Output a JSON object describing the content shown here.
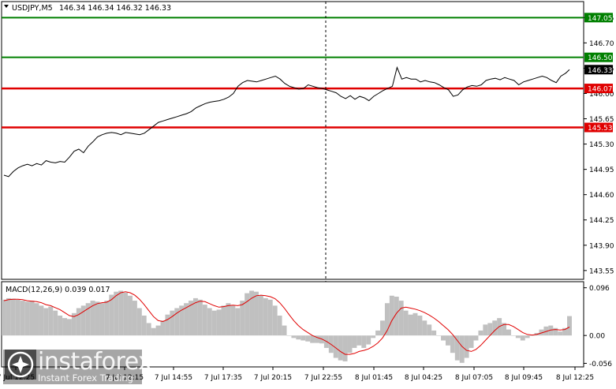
{
  "chart_data": [
    {
      "type": "line",
      "title": "USDJPY,M5",
      "ohlc_readout": "146.34 146.34 146.32 146.33",
      "ylim": [
        143.45,
        147.25
      ],
      "ytick_labels": [
        "147.05",
        "146.70",
        "146.35",
        "146.00",
        "145.65",
        "145.30",
        "144.95",
        "144.60",
        "144.25",
        "143.90",
        "143.55"
      ],
      "ytick_values": [
        147.05,
        146.7,
        146.35,
        146.0,
        145.65,
        145.3,
        144.95,
        144.6,
        144.25,
        143.9,
        143.55
      ],
      "horizontal_levels": [
        {
          "label": "147.05",
          "value": 147.05,
          "color": "#008000"
        },
        {
          "label": "146.50",
          "value": 146.5,
          "color": "#008000"
        },
        {
          "label": "146.07",
          "value": 146.07,
          "color": "#e00000"
        },
        {
          "label": "145.53",
          "value": 145.53,
          "color": "#e00000"
        }
      ],
      "current_price": {
        "label": "146.33",
        "value": 146.33
      },
      "x": [
        0,
        6,
        12,
        18,
        24,
        30,
        36,
        42,
        48,
        54,
        60,
        66,
        72,
        78,
        84,
        90,
        96,
        102,
        108,
        114,
        120,
        126,
        132,
        138,
        144,
        150,
        156,
        162,
        168,
        174,
        180,
        186,
        192,
        198,
        204,
        210,
        216,
        222,
        228,
        234,
        240,
        246,
        252,
        258,
        264,
        270,
        276,
        282,
        288,
        294,
        300,
        306,
        312,
        318,
        324,
        330,
        336,
        342,
        348,
        354,
        360,
        366,
        372,
        378,
        384,
        390,
        396,
        402,
        408,
        414,
        420,
        426,
        432,
        438,
        444,
        450,
        456,
        462,
        468,
        474,
        480,
        486,
        492,
        498,
        504,
        510,
        516,
        522,
        528,
        534,
        540,
        546,
        552,
        558,
        564,
        570,
        576,
        582,
        588,
        594,
        600,
        606,
        612,
        618,
        624,
        630,
        636,
        642,
        648,
        654,
        660,
        666,
        672,
        678,
        684,
        690,
        696,
        702,
        708,
        714,
        720,
        725
      ],
      "y": [
        144.87,
        144.85,
        144.92,
        144.97,
        145.0,
        145.02,
        145.0,
        145.03,
        145.01,
        145.07,
        145.05,
        145.04,
        145.06,
        145.05,
        145.12,
        145.2,
        145.23,
        145.18,
        145.27,
        145.33,
        145.4,
        145.43,
        145.45,
        145.46,
        145.45,
        145.43,
        145.46,
        145.45,
        145.44,
        145.43,
        145.45,
        145.5,
        145.55,
        145.6,
        145.62,
        145.64,
        145.66,
        145.68,
        145.7,
        145.72,
        145.75,
        145.8,
        145.83,
        145.86,
        145.88,
        145.89,
        145.9,
        145.92,
        145.95,
        146.0,
        146.1,
        146.15,
        146.18,
        146.17,
        146.16,
        146.18,
        146.2,
        146.22,
        146.24,
        146.2,
        146.14,
        146.1,
        146.08,
        146.06,
        146.07,
        146.12,
        146.1,
        146.08,
        146.07,
        146.05,
        146.03,
        146.01,
        145.96,
        145.93,
        145.97,
        145.92,
        145.96,
        145.94,
        145.9,
        145.96,
        146.0,
        146.04,
        146.07,
        146.1,
        146.36,
        146.2,
        146.22,
        146.2,
        146.2,
        146.16,
        146.18,
        146.16,
        146.15,
        146.12,
        146.08,
        146.05,
        145.96,
        145.98,
        146.05,
        146.09,
        146.11,
        146.1,
        146.12,
        146.18,
        146.2,
        146.21,
        146.19,
        146.22,
        146.2,
        146.18,
        146.12,
        146.16,
        146.18,
        146.2,
        146.22,
        146.24,
        146.22,
        146.18,
        146.15,
        146.24,
        146.28,
        146.33
      ]
    },
    {
      "type": "bar",
      "title": "MACD(12,26,9) 0.039 0.017",
      "ylim": [
        -0.06,
        0.105
      ],
      "ytick_labels": [
        "0.096",
        "0.00",
        "-0.056"
      ],
      "ytick_values": [
        0.096,
        0.0,
        -0.056
      ],
      "series": [
        {
          "name": "MACD",
          "values": [
            0.072,
            0.075,
            0.074,
            0.072,
            0.07,
            0.068,
            0.07,
            0.065,
            0.06,
            0.055,
            0.058,
            0.05,
            0.04,
            0.035,
            0.033,
            0.045,
            0.055,
            0.06,
            0.065,
            0.07,
            0.068,
            0.065,
            0.07,
            0.082,
            0.088,
            0.09,
            0.086,
            0.08,
            0.07,
            0.055,
            0.04,
            0.025,
            0.015,
            0.02,
            0.03,
            0.042,
            0.05,
            0.055,
            0.06,
            0.065,
            0.07,
            0.075,
            0.072,
            0.062,
            0.055,
            0.05,
            0.052,
            0.06,
            0.065,
            0.06,
            0.055,
            0.07,
            0.085,
            0.09,
            0.088,
            0.08,
            0.075,
            0.072,
            0.06,
            0.04,
            0.02,
            0.0,
            -0.005,
            -0.008,
            -0.01,
            -0.012,
            -0.015,
            -0.015,
            -0.016,
            -0.025,
            -0.035,
            -0.045,
            -0.05,
            -0.052,
            -0.035,
            -0.025,
            -0.02,
            -0.025,
            -0.018,
            -0.005,
            0.01,
            0.03,
            0.065,
            0.08,
            0.078,
            0.07,
            0.05,
            0.042,
            0.045,
            0.04,
            0.03,
            0.022,
            0.01,
            0.0,
            -0.01,
            -0.02,
            -0.035,
            -0.05,
            -0.055,
            -0.045,
            -0.025,
            -0.01,
            0.01,
            0.022,
            0.025,
            0.03,
            0.035,
            0.025,
            0.012,
            0.0,
            -0.005,
            -0.01,
            -0.005,
            0.0,
            0.005,
            0.012,
            0.018,
            0.02,
            0.015,
            0.008,
            0.015,
            0.039
          ]
        },
        {
          "name": "Signal",
          "values": [
            0.07,
            0.072,
            0.073,
            0.073,
            0.072,
            0.07,
            0.069,
            0.068,
            0.066,
            0.062,
            0.06,
            0.056,
            0.052,
            0.046,
            0.04,
            0.038,
            0.042,
            0.048,
            0.054,
            0.06,
            0.064,
            0.066,
            0.067,
            0.072,
            0.08,
            0.086,
            0.088,
            0.086,
            0.081,
            0.073,
            0.062,
            0.05,
            0.038,
            0.03,
            0.028,
            0.032,
            0.038,
            0.045,
            0.051,
            0.056,
            0.061,
            0.066,
            0.069,
            0.068,
            0.064,
            0.06,
            0.057,
            0.058,
            0.06,
            0.061,
            0.06,
            0.062,
            0.068,
            0.075,
            0.08,
            0.081,
            0.08,
            0.078,
            0.074,
            0.066,
            0.055,
            0.042,
            0.03,
            0.02,
            0.012,
            0.006,
            0.0,
            -0.004,
            -0.007,
            -0.012,
            -0.018,
            -0.025,
            -0.032,
            -0.038,
            -0.038,
            -0.036,
            -0.032,
            -0.03,
            -0.027,
            -0.022,
            -0.015,
            -0.005,
            0.01,
            0.03,
            0.045,
            0.055,
            0.057,
            0.055,
            0.053,
            0.05,
            0.046,
            0.041,
            0.035,
            0.028,
            0.02,
            0.012,
            0.002,
            -0.01,
            -0.022,
            -0.03,
            -0.032,
            -0.028,
            -0.02,
            -0.01,
            0.0,
            0.01,
            0.018,
            0.022,
            0.022,
            0.018,
            0.012,
            0.006,
            0.002,
            0.001,
            0.002,
            0.005,
            0.008,
            0.011,
            0.012,
            0.011,
            0.012,
            0.017
          ]
        }
      ]
    }
  ],
  "x_axis": {
    "tick_labels": [
      "7 Jul 12:25",
      "7 Jul 12:15",
      "7 Jul 14:55",
      "7 Jul 17:35",
      "7 Jul 20:15",
      "7 Jul 22:55",
      "8 Jul 01:45",
      "8 Jul 04:25",
      "8 Jul 07:05",
      "8 Jul 09:45",
      "8 Jul 12:25"
    ]
  },
  "brand": {
    "name": "instaforex",
    "tagline": "Instant Forex Trading"
  },
  "colors": {
    "price_line": "#000000",
    "macd_bars": "#c0c0c0",
    "signal_line": "#e00000",
    "support": "#e00000",
    "resistance": "#008000",
    "current_price_bg": "#000000",
    "axis": "#000000",
    "brand_bg": "#000000"
  }
}
